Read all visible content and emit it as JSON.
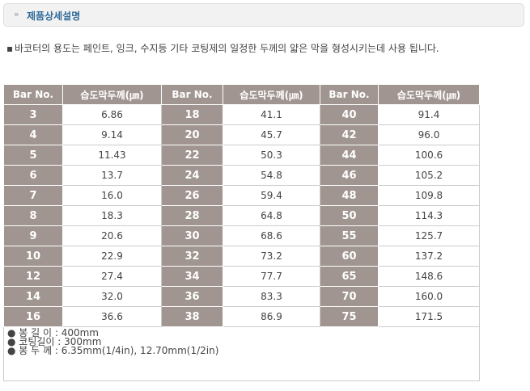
{
  "header": {
    "title": "제품상세설명"
  },
  "description": "바코터의 용도는 페인트, 잉크, 수지등 기타 코팅제의 일정한 두께의 얇은 막을 형성시키는데 사용 됩니다.",
  "table": {
    "header": [
      "Bar No.",
      "습도막두께(㎛)",
      "Bar No.",
      "습도막두께(㎛)",
      "Bar No.",
      "습도막두께(㎛)"
    ],
    "rows": [
      [
        "3",
        "6.86",
        "18",
        "41.1",
        "40",
        "91.4"
      ],
      [
        "4",
        "9.14",
        "20",
        "45.7",
        "42",
        "96.0"
      ],
      [
        "5",
        "11.43",
        "22",
        "50.3",
        "44",
        "100.6"
      ],
      [
        "6",
        "13.7",
        "24",
        "54.8",
        "46",
        "105.2"
      ],
      [
        "7",
        "16.0",
        "26",
        "59.4",
        "48",
        "109.8"
      ],
      [
        "8",
        "18.3",
        "28",
        "64.8",
        "50",
        "114.3"
      ],
      [
        "9",
        "20.6",
        "30",
        "68.6",
        "55",
        "125.7"
      ],
      [
        "10",
        "22.9",
        "32",
        "73.2",
        "60",
        "137.2"
      ],
      [
        "12",
        "27.4",
        "34",
        "77.7",
        "65",
        "148.6"
      ],
      [
        "14",
        "32.0",
        "36",
        "83.3",
        "70",
        "160.0"
      ],
      [
        "16",
        "36.6",
        "38",
        "86.9",
        "75",
        "171.5"
      ]
    ],
    "notes": [
      "봉 길 이 : 400mm",
      "코팅길이 : 300mm",
      "봉 두 께 : 6.35mm(1/4in), 12.70mm(1/2in)"
    ]
  }
}
